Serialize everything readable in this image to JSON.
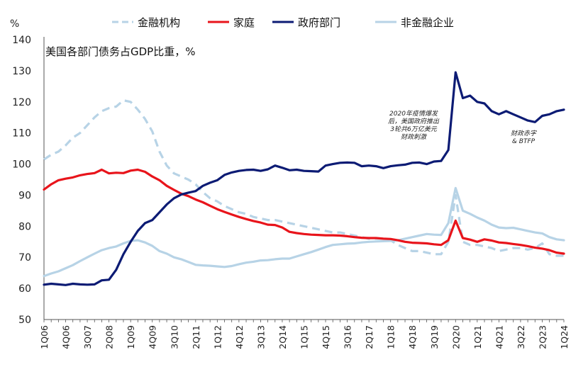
{
  "chart_data": {
    "type": "line",
    "title": "美国各部门债务占GDP比重，%",
    "ylabel": "%",
    "xlabel": "",
    "ylim": [
      50,
      140
    ],
    "y_ticks": [
      50,
      60,
      70,
      80,
      90,
      100,
      110,
      120,
      130,
      140
    ],
    "x_tick_labels": [
      "1Q06",
      "4Q06",
      "3Q07",
      "2Q08",
      "1Q09",
      "4Q09",
      "3Q10",
      "2Q11",
      "1Q12",
      "4Q12",
      "3Q13",
      "2Q14",
      "1Q15",
      "4Q15",
      "3Q16",
      "2Q17",
      "1Q18",
      "4Q18",
      "3Q19",
      "2Q20",
      "1Q21",
      "4Q21",
      "3Q22",
      "2Q23",
      "1Q24"
    ],
    "grid": false,
    "legend_position": "top",
    "x": [
      "1Q06",
      "2Q06",
      "3Q06",
      "4Q06",
      "1Q07",
      "2Q07",
      "3Q07",
      "4Q07",
      "1Q08",
      "2Q08",
      "3Q08",
      "4Q08",
      "1Q09",
      "2Q09",
      "3Q09",
      "4Q09",
      "1Q10",
      "2Q10",
      "3Q10",
      "4Q10",
      "1Q11",
      "2Q11",
      "3Q11",
      "4Q11",
      "1Q12",
      "2Q12",
      "3Q12",
      "4Q12",
      "1Q13",
      "2Q13",
      "3Q13",
      "4Q13",
      "1Q14",
      "2Q14",
      "3Q14",
      "4Q14",
      "1Q15",
      "2Q15",
      "3Q15",
      "4Q15",
      "1Q16",
      "2Q16",
      "3Q16",
      "4Q16",
      "1Q17",
      "2Q17",
      "3Q17",
      "4Q17",
      "1Q18",
      "2Q18",
      "3Q18",
      "4Q18",
      "1Q19",
      "2Q19",
      "3Q19",
      "4Q19",
      "1Q20",
      "2Q20",
      "3Q20",
      "4Q20",
      "1Q21",
      "2Q21",
      "3Q21",
      "4Q21",
      "1Q22",
      "2Q22",
      "3Q22",
      "4Q22",
      "1Q23",
      "2Q23",
      "3Q23",
      "4Q23",
      "1Q24"
    ],
    "series": [
      {
        "name": "金融机构",
        "color": "#b7d3e6",
        "dash": true,
        "values": [
          101.5,
          103,
          104,
          106,
          108.5,
          110,
          112.5,
          115,
          117,
          118,
          118.5,
          120.5,
          120,
          117.5,
          114.5,
          110.5,
          104,
          99.5,
          97,
          96,
          95,
          93.5,
          91,
          89,
          88,
          86.5,
          85.5,
          84.5,
          84,
          83,
          82.5,
          82,
          82,
          81.5,
          81,
          80.5,
          80,
          79.5,
          79,
          78.5,
          78,
          78,
          77.5,
          77,
          76.5,
          76,
          76,
          76,
          75.5,
          74,
          73,
          72,
          72,
          71.5,
          71,
          71,
          75,
          90,
          75,
          74,
          74,
          73.5,
          73,
          72,
          72.5,
          73,
          73,
          72.5,
          73,
          74.5,
          71,
          70.5,
          70.5
        ]
      },
      {
        "name": "家庭",
        "color": "#e8141b",
        "dash": false,
        "values": [
          91.8,
          93.5,
          94.8,
          95.3,
          95.7,
          96.4,
          96.8,
          97.1,
          98.2,
          97,
          97.2,
          97.1,
          97.9,
          98.2,
          97.5,
          96,
          94.8,
          93,
          91.7,
          90.5,
          89.7,
          88.6,
          87.7,
          86.6,
          85.5,
          84.6,
          83.8,
          83,
          82.3,
          81.7,
          81.2,
          80.5,
          80.4,
          79.6,
          78.2,
          77.8,
          77.5,
          77.3,
          77.2,
          77.1,
          77.1,
          77,
          76.8,
          76.5,
          76.3,
          76.2,
          76.2,
          76,
          75.9,
          75.5,
          75,
          74.7,
          74.6,
          74.5,
          74.2,
          74,
          75.5,
          81.8,
          76.2,
          75.7,
          75,
          75.8,
          75.4,
          74.8,
          74.6,
          74.3,
          74,
          73.6,
          73.1,
          72.8,
          72.3,
          71.5,
          71.2
        ]
      },
      {
        "name": "政府部门",
        "color": "#0c1b74",
        "dash": false,
        "values": [
          61.2,
          61.5,
          61.3,
          61.1,
          61.5,
          61.3,
          61.2,
          61.3,
          62.6,
          62.8,
          66,
          71,
          75,
          78.5,
          81,
          82,
          84.5,
          87,
          89,
          90.2,
          90.8,
          91.3,
          93,
          94,
          94.8,
          96.5,
          97.3,
          97.8,
          98.1,
          98.2,
          97.8,
          98.3,
          99.5,
          98.8,
          98,
          98.2,
          97.8,
          97.7,
          97.6,
          99.5,
          100,
          100.4,
          100.5,
          100.4,
          99.3,
          99.5,
          99.3,
          98.7,
          99.3,
          99.6,
          99.8,
          100.4,
          100.5,
          100,
          100.8,
          101,
          104.5,
          129.5,
          121.2,
          122,
          120,
          119.5,
          117,
          116,
          117,
          116,
          115,
          114,
          113.5,
          115.5,
          116,
          117,
          117.5
        ]
      },
      {
        "name": "非金融企业",
        "color": "#b7d3e6",
        "dash": false,
        "values": [
          64,
          64.8,
          65.5,
          66.5,
          67.5,
          68.8,
          70,
          71.2,
          72.3,
          73,
          73.5,
          74.5,
          75.3,
          75.5,
          74.8,
          73.7,
          72,
          71.2,
          70,
          69.4,
          68.5,
          67.6,
          67.4,
          67.3,
          67.1,
          66.9,
          67.2,
          67.8,
          68.3,
          68.6,
          69,
          69.1,
          69.4,
          69.6,
          69.6,
          70.3,
          71,
          71.7,
          72.5,
          73.3,
          74,
          74.2,
          74.4,
          74.5,
          74.8,
          75,
          75.1,
          75.2,
          75.3,
          75.5,
          76,
          76.5,
          77,
          77.5,
          77.3,
          77.2,
          81,
          92.3,
          85,
          84,
          82.8,
          81.8,
          80.5,
          79.6,
          79.4,
          79.5,
          79,
          78.5,
          78,
          77.7,
          76.5,
          75.8,
          75.5
        ]
      }
    ],
    "annotations": [
      {
        "lines": [
          "2020年疫情爆发",
          "后，美国政府推出",
          "3轮共6万亿美元",
          "财政刺激"
        ]
      },
      {
        "lines": [
          "财政赤字",
          "& BTFP"
        ]
      }
    ]
  }
}
